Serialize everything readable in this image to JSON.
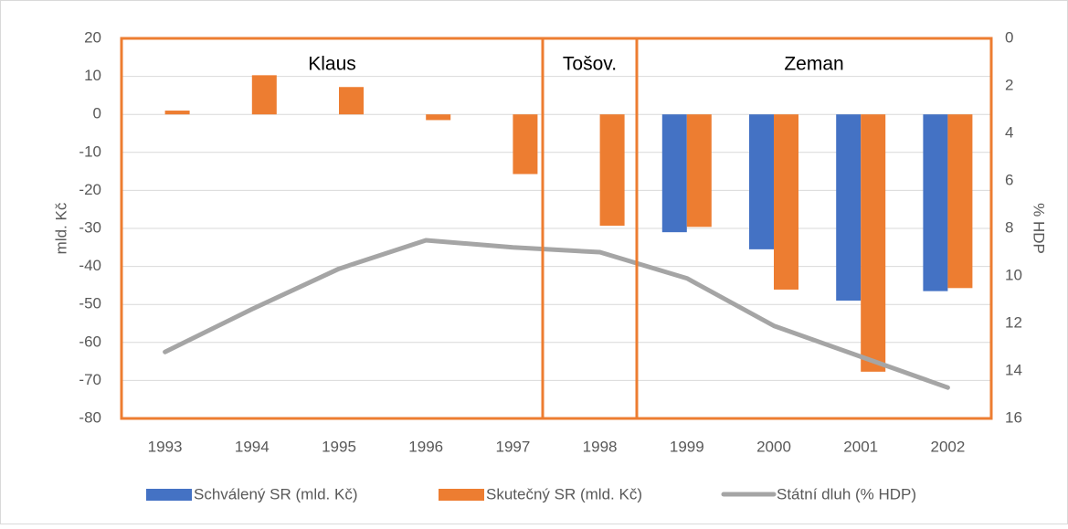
{
  "chart_data": {
    "type": "bar",
    "categories": [
      "1993",
      "1994",
      "1995",
      "1996",
      "1997",
      "1998",
      "1999",
      "2000",
      "2001",
      "2002"
    ],
    "series": [
      {
        "name": "Schválený SR (mld. Kč)",
        "color": "#4472c4",
        "values": [
          null,
          null,
          null,
          null,
          null,
          null,
          -31,
          -35.5,
          -49,
          -46.5
        ]
      },
      {
        "name": "Skutečný SR (mld. Kč)",
        "color": "#ed7d31",
        "values": [
          1,
          10.3,
          7.2,
          -1.5,
          -15.7,
          -29.3,
          -29.6,
          -46.1,
          -67.7,
          -45.7
        ]
      },
      {
        "name": "Státní dluh (% HDP)",
        "color": "#a5a5a5",
        "type": "line",
        "axis": "y2",
        "values": [
          13.2,
          11.4,
          9.7,
          8.5,
          8.8,
          9.0,
          10.1,
          12.1,
          13.4,
          14.7
        ]
      }
    ],
    "ylabel": "mld. Kč",
    "y2label": "% HDP",
    "ylim": [
      -80,
      20
    ],
    "yticks": [
      20,
      10,
      0,
      -10,
      -20,
      -30,
      -40,
      -50,
      -60,
      -70,
      -80
    ],
    "y2lim": [
      16,
      0
    ],
    "y2ticks": [
      0,
      2,
      4,
      6,
      8,
      10,
      12,
      14,
      16
    ],
    "annotations": [
      "Klaus",
      "Tošov.",
      "Zeman"
    ],
    "grid": true,
    "legend": "bottom"
  }
}
